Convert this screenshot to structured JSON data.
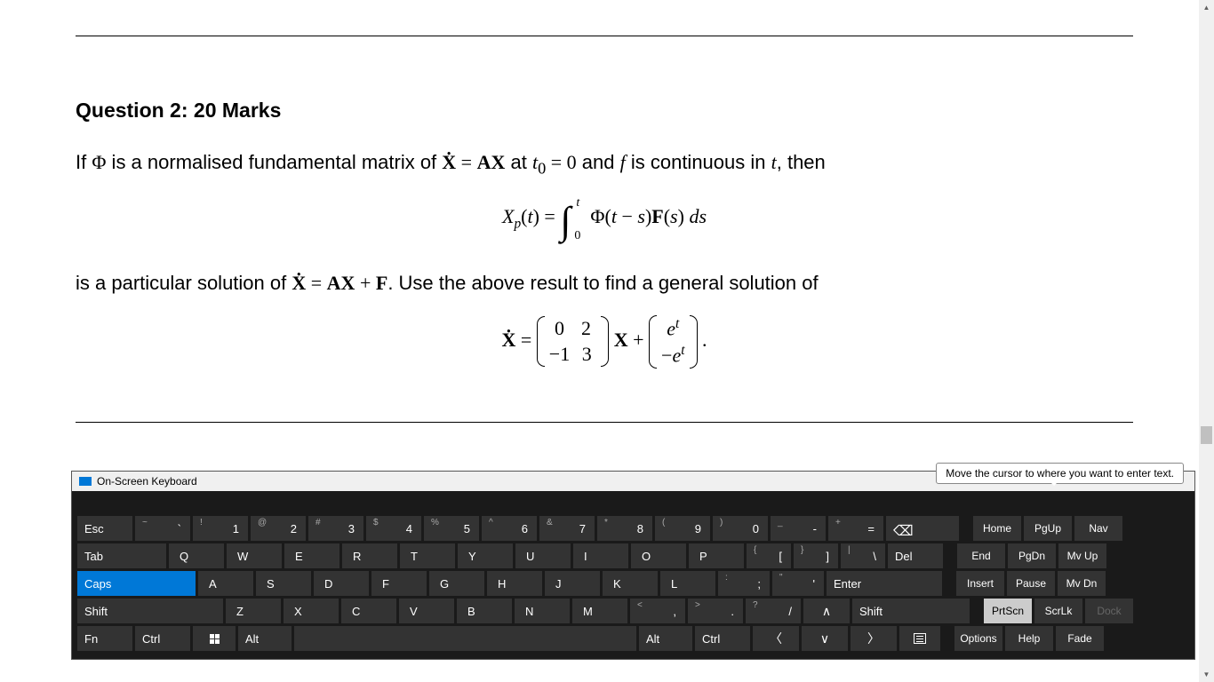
{
  "doc": {
    "question_title": "Question 2: 20 Marks",
    "line1_pre": "If ",
    "phi": "Φ",
    "line1_mid": " is a normalised fundamental matrix of ",
    "Xdot_eq_AX": "Ẋ = AX",
    "line1_at": " at ",
    "t0": "t",
    "t0sub": "0",
    "eq0": " = 0",
    "line1_and": " and ",
    "f": "f",
    "line1_cont": " is continuous in ",
    "t": "t",
    "line1_then": ", then",
    "eq_lhs": "X",
    "eq_p": "p",
    "eq_of_t": "(t) = ",
    "int_up": "t",
    "int_lo": "0",
    "eq_integrand": "Φ(t − s)F(s) ds",
    "line2_pre": "is a particular solution of ",
    "Xdot_eq_AX_F": "Ẋ = AX + F",
    "line2_post": ". Use the above result to find a general solution of",
    "eq2_lhs": "Ẋ = ",
    "m1_r1c1": "0",
    "m1_r1c2": "2",
    "m1_r2c1": "−1",
    "m1_r2c2": "3",
    "eq2_mid": " X + ",
    "m2_r1": "e",
    "m2_r1_sup": "t",
    "m2_r2_pre": "−e",
    "m2_r2_sup": "t",
    "eq2_end": " ."
  },
  "tooltip": "Move the cursor to where you want to enter text.",
  "osk": {
    "title": "On-Screen Keyboard",
    "row1": {
      "esc": "Esc",
      "keys": [
        {
          "u": "~",
          "l": "`"
        },
        {
          "u": "!",
          "l": "1"
        },
        {
          "u": "@",
          "l": "2"
        },
        {
          "u": "#",
          "l": "3"
        },
        {
          "u": "$",
          "l": "4"
        },
        {
          "u": "%",
          "l": "5"
        },
        {
          "u": "^",
          "l": "6"
        },
        {
          "u": "&",
          "l": "7"
        },
        {
          "u": "*",
          "l": "8"
        },
        {
          "u": "(",
          "l": "9"
        },
        {
          "u": ")",
          "l": "0"
        },
        {
          "u": "_",
          "l": "-"
        },
        {
          "u": "+",
          "l": "="
        }
      ],
      "nav": [
        "Home",
        "PgUp",
        "Nav"
      ]
    },
    "row2": {
      "tab": "Tab",
      "keys": [
        "Q",
        "W",
        "E",
        "R",
        "T",
        "Y",
        "U",
        "I",
        "O",
        "P"
      ],
      "br": [
        {
          "u": "{",
          "l": "["
        },
        {
          "u": "}",
          "l": "]"
        },
        {
          "u": "|",
          "l": "\\"
        }
      ],
      "del": "Del",
      "nav": [
        "End",
        "PgDn",
        "Mv Up"
      ]
    },
    "row3": {
      "caps": "Caps",
      "keys": [
        "A",
        "S",
        "D",
        "F",
        "G",
        "H",
        "J",
        "K",
        "L"
      ],
      "punct": [
        {
          "u": ":",
          "l": ";"
        },
        {
          "u": "\"",
          "l": "'"
        }
      ],
      "enter": "Enter",
      "nav": [
        "Insert",
        "Pause",
        "Mv Dn"
      ]
    },
    "row4": {
      "shift": "Shift",
      "keys": [
        "Z",
        "X",
        "C",
        "V",
        "B",
        "N",
        "M"
      ],
      "punct": [
        {
          "u": "<",
          "l": ","
        },
        {
          "u": ">",
          "l": "."
        },
        {
          "u": "?",
          "l": "/"
        }
      ],
      "up": "∧",
      "shift2": "Shift",
      "nav": [
        "PrtScn",
        "ScrLk",
        "Dock"
      ]
    },
    "row5": {
      "fn": "Fn",
      "ctrl": "Ctrl",
      "alt": "Alt",
      "alt2": "Alt",
      "ctrl2": "Ctrl",
      "left": "〈",
      "down": "∨",
      "right": "〉",
      "nav": [
        "Options",
        "Help",
        "Fade"
      ]
    }
  }
}
